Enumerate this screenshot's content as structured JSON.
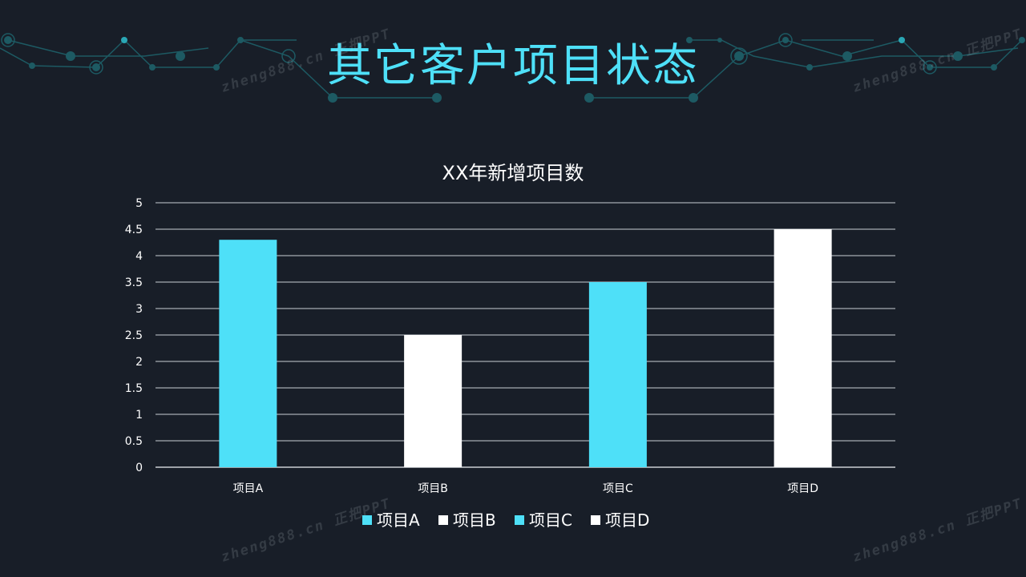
{
  "slide": {
    "title": "其它客户项目状态"
  },
  "watermarks": [
    "zheng888.cn 正把PPT",
    "zheng888.cn 正把PPT",
    "zheng888.cn 正把PPT",
    "zheng888.cn 正把PPT"
  ],
  "colors": {
    "background": "#181e28",
    "accent": "#4ee0f8",
    "white": "#ffffff",
    "grid": "#d8dde3",
    "deco": "#1d5a63"
  },
  "chart_data": {
    "type": "bar",
    "title": "XX年新增项目数",
    "xlabel": "",
    "ylabel": "",
    "categories": [
      "项目A",
      "项目B",
      "项目C",
      "项目D"
    ],
    "values": [
      4.3,
      2.5,
      3.5,
      4.5
    ],
    "bar_colors": [
      "#4ee0f8",
      "#ffffff",
      "#4ee0f8",
      "#ffffff"
    ],
    "ylim": [
      0,
      5
    ],
    "yticks": [
      "0",
      "0.5",
      "1",
      "1.5",
      "2",
      "2.5",
      "3",
      "3.5",
      "4",
      "4.5",
      "5"
    ],
    "grid": true,
    "legend": {
      "position": "bottom",
      "entries": [
        {
          "label": "项目A",
          "color": "#4ee0f8"
        },
        {
          "label": "项目B",
          "color": "#ffffff"
        },
        {
          "label": "项目C",
          "color": "#4ee0f8"
        },
        {
          "label": "项目D",
          "color": "#ffffff"
        }
      ]
    }
  }
}
